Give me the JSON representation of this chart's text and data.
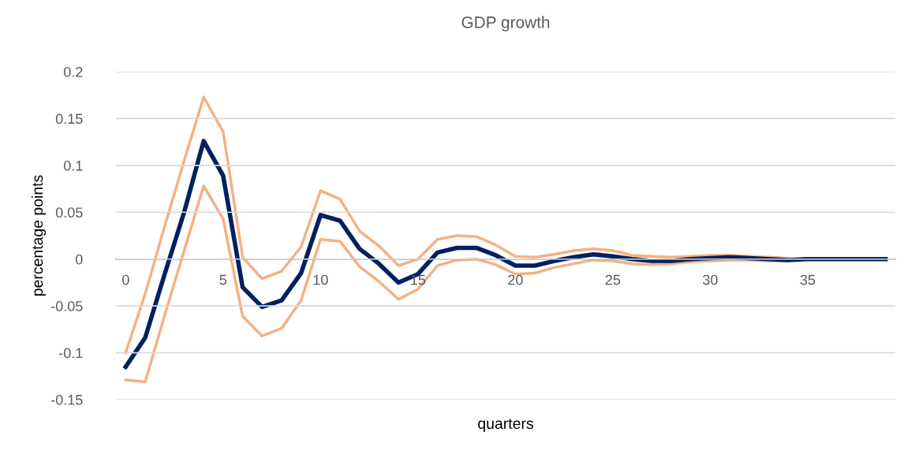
{
  "chart_data": {
    "type": "line",
    "title": "GDP growth",
    "xlabel": "quarters",
    "ylabel": "percentage points",
    "x": [
      0,
      1,
      2,
      3,
      4,
      5,
      6,
      7,
      8,
      9,
      10,
      11,
      12,
      13,
      14,
      15,
      16,
      17,
      18,
      19,
      20,
      21,
      22,
      23,
      24,
      25,
      26,
      27,
      28,
      29,
      30,
      31,
      32,
      33,
      34,
      35,
      36,
      37,
      38,
      39
    ],
    "series": [
      {
        "color": "#f4b183",
        "values": [
          -0.1,
          -0.037,
          0.035,
          0.105,
          0.173,
          0.136,
          0.002,
          -0.021,
          -0.013,
          0.013,
          0.073,
          0.064,
          0.03,
          0.014,
          -0.007,
          0.0,
          0.021,
          0.025,
          0.024,
          0.015,
          0.003,
          0.002,
          0.005,
          0.009,
          0.011,
          0.009,
          0.004,
          0.003,
          0.002,
          0.003,
          0.004,
          0.004,
          0.003,
          0.002,
          0.001,
          null,
          null,
          null,
          null,
          null
        ]
      },
      {
        "color": "#f4b183",
        "values": [
          -0.129,
          -0.131,
          -0.06,
          0.009,
          0.078,
          0.043,
          -0.061,
          -0.082,
          -0.074,
          -0.044,
          0.021,
          0.019,
          -0.008,
          -0.024,
          -0.043,
          -0.032,
          -0.007,
          -0.001,
          0.0,
          -0.006,
          -0.016,
          -0.015,
          -0.009,
          -0.005,
          -0.001,
          -0.002,
          -0.005,
          -0.006,
          -0.005,
          -0.003,
          -0.002,
          -0.001,
          -0.001,
          -0.002,
          -0.002,
          null,
          null,
          null,
          null,
          null
        ]
      },
      {
        "color": "#002060",
        "values": [
          -0.115,
          -0.084,
          -0.016,
          0.05,
          0.126,
          0.089,
          -0.03,
          -0.051,
          -0.044,
          -0.015,
          0.047,
          0.041,
          0.011,
          -0.005,
          -0.025,
          -0.016,
          0.007,
          0.012,
          0.012,
          0.004,
          -0.007,
          -0.007,
          -0.002,
          0.002,
          0.005,
          0.003,
          0.0,
          -0.002,
          -0.002,
          0.0,
          0.001,
          0.002,
          0.001,
          0.0,
          -0.001,
          0.0,
          0.0,
          0.0,
          0.0,
          0.0
        ]
      }
    ],
    "xlim": [
      -0.5,
      39.5
    ],
    "xticks": [
      0,
      5,
      10,
      15,
      20,
      25,
      30,
      35
    ],
    "ylim": [
      -0.15,
      0.2
    ],
    "yticks": [
      -0.15,
      -0.1,
      -0.05,
      0,
      0.05,
      0.1,
      0.15,
      0.2
    ],
    "grid": "y",
    "marker": "none",
    "line_style": "solid"
  }
}
